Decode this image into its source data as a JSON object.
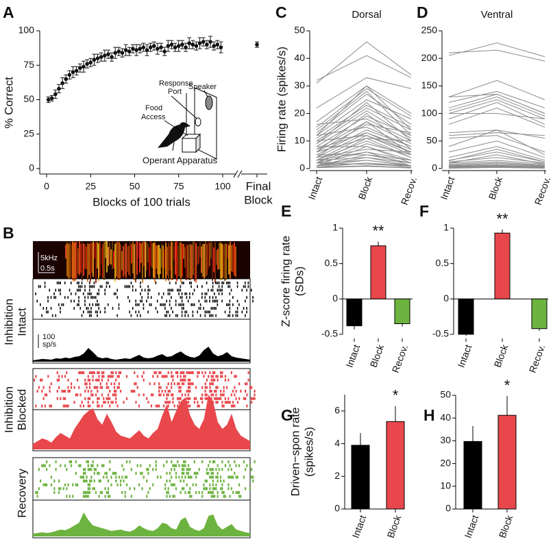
{
  "chart_data": [
    {
      "type": "scatter",
      "panel": "A",
      "ylabel": "% Correct",
      "xlabel": "Blocks of 100 trials",
      "xlim": [
        0,
        100
      ],
      "xticks": [
        0,
        25,
        50,
        75,
        100
      ],
      "ylim": [
        0,
        100
      ],
      "yticks": [
        0,
        25,
        50,
        75,
        100
      ],
      "x": [
        1,
        3,
        5,
        7,
        9,
        11,
        13,
        15,
        17,
        19,
        21,
        23,
        25,
        27,
        29,
        31,
        33,
        35,
        37,
        39,
        41,
        43,
        45,
        47,
        49,
        51,
        53,
        55,
        57,
        59,
        61,
        63,
        65,
        67,
        69,
        71,
        73,
        75,
        77,
        79,
        81,
        83,
        85,
        87,
        89,
        91,
        93,
        95,
        97,
        99
      ],
      "values": [
        50,
        51,
        54,
        58,
        62,
        65,
        68,
        70,
        71,
        73,
        74,
        76,
        77,
        79,
        80,
        81,
        82,
        83,
        81,
        84,
        85,
        84,
        86,
        85,
        87,
        86,
        87,
        88,
        86,
        88,
        89,
        87,
        88,
        85,
        89,
        90,
        88,
        89,
        90,
        88,
        91,
        90,
        89,
        91,
        92,
        90,
        92,
        89,
        90,
        88
      ],
      "errors": [
        2,
        2,
        3,
        3,
        4,
        3,
        3,
        4,
        3,
        3,
        4,
        3,
        3,
        4,
        3,
        3,
        4,
        3,
        3,
        4,
        3,
        3,
        4,
        3,
        3,
        4,
        3,
        3,
        4,
        3,
        3,
        4,
        3,
        3,
        4,
        3,
        3,
        4,
        3,
        3,
        4,
        3,
        3,
        4,
        3,
        3,
        4,
        3,
        3,
        4
      ],
      "final_label": [
        "Final",
        "Block"
      ],
      "final_value": 90,
      "final_error": 2,
      "color": "#111111",
      "inset_labels": {
        "response_port": [
          "Response",
          "Port"
        ],
        "speaker": "Speaker",
        "food_access": [
          "Food",
          "Access"
        ],
        "apparatus": "Operant Apparatus"
      }
    },
    {
      "type": "raster",
      "panel": "B",
      "spectrogram_labels": [
        "5kHz",
        "0.5s"
      ],
      "scale_bar": {
        "value": 100,
        "label": [
          "100",
          "sp/s"
        ]
      },
      "series": [
        {
          "name": [
            "Inhibition",
            "Intact"
          ],
          "color": "#000000",
          "values": [
            10,
            15,
            20,
            18,
            15,
            25,
            22,
            30,
            25,
            35,
            40,
            60,
            100,
            70,
            35,
            25,
            30,
            20,
            15,
            20,
            25,
            20,
            35,
            50,
            30,
            25,
            30,
            45,
            55,
            35,
            40,
            60,
            75,
            50,
            35,
            30,
            45,
            85,
            110,
            60,
            40,
            50,
            70,
            40,
            30,
            25,
            20,
            15
          ]
        },
        {
          "name": [
            "Inhibition",
            "Blocked"
          ],
          "color": "#e8474c",
          "values": [
            40,
            60,
            80,
            70,
            50,
            90,
            120,
            100,
            80,
            150,
            200,
            250,
            280,
            300,
            220,
            180,
            260,
            200,
            130,
            100,
            90,
            80,
            110,
            140,
            100,
            80,
            120,
            150,
            250,
            330,
            200,
            280,
            350,
            380,
            250,
            180,
            150,
            220,
            400,
            350,
            200,
            150,
            180,
            260,
            150,
            100,
            80,
            60
          ]
        },
        {
          "name": [
            "Recovery"
          ],
          "color": "#6db33f",
          "values": [
            20,
            25,
            30,
            25,
            30,
            40,
            50,
            45,
            60,
            80,
            100,
            175,
            120,
            80,
            70,
            60,
            50,
            40,
            45,
            50,
            40,
            35,
            50,
            80,
            60,
            45,
            40,
            60,
            100,
            90,
            60,
            50,
            120,
            140,
            70,
            50,
            40,
            60,
            150,
            160,
            80,
            50,
            70,
            90,
            50,
            40,
            30,
            25
          ]
        }
      ]
    },
    {
      "type": "line",
      "panel": "C",
      "title": "Dorsal",
      "ylabel": "Firing rate (spikes/s)",
      "categories": [
        "Intact",
        "Block",
        "Recov."
      ],
      "ylim": [
        0,
        50
      ],
      "yticks": [
        0,
        10,
        20,
        30,
        40,
        50
      ],
      "color": "#8a8a8a",
      "lines": [
        [
          31,
          46,
          34
        ],
        [
          32,
          41,
          33
        ],
        [
          22,
          33,
          29
        ],
        [
          17,
          30,
          20
        ],
        [
          15,
          29,
          19
        ],
        [
          14,
          28,
          12
        ],
        [
          13,
          27,
          16
        ],
        [
          12,
          25,
          18
        ],
        [
          11,
          23,
          15
        ],
        [
          10,
          22,
          14
        ],
        [
          9,
          21,
          11
        ],
        [
          8,
          19,
          12
        ],
        [
          16,
          18,
          10
        ],
        [
          7,
          17,
          9
        ],
        [
          6,
          16,
          13
        ],
        [
          12,
          15,
          8
        ],
        [
          5,
          14,
          8
        ],
        [
          4,
          13,
          7
        ],
        [
          10,
          12,
          6
        ],
        [
          3,
          12,
          5
        ],
        [
          6,
          11,
          10
        ],
        [
          3,
          10,
          4
        ],
        [
          2,
          9,
          5
        ],
        [
          8,
          8,
          3
        ],
        [
          1,
          8,
          2
        ],
        [
          4,
          7,
          6
        ],
        [
          2,
          6,
          1
        ],
        [
          1,
          5,
          3
        ],
        [
          5,
          5,
          2
        ],
        [
          3,
          4,
          2
        ],
        [
          1,
          3,
          1
        ],
        [
          2,
          3,
          1
        ],
        [
          0.5,
          2,
          1
        ],
        [
          1,
          2,
          0.5
        ],
        [
          0.5,
          1,
          0.3
        ],
        [
          2,
          1.5,
          1
        ],
        [
          0.3,
          0.8,
          0.2
        ],
        [
          1,
          4,
          1
        ],
        [
          3,
          6,
          3
        ],
        [
          2,
          11,
          4
        ],
        [
          6,
          20,
          7
        ],
        [
          9,
          24,
          10
        ],
        [
          4,
          17,
          5
        ],
        [
          12,
          30,
          14
        ],
        [
          7,
          13,
          6
        ]
      ]
    },
    {
      "type": "line",
      "panel": "D",
      "title": "Ventral",
      "categories": [
        "Intact",
        "Block",
        "Recov."
      ],
      "ylim": [
        0,
        250
      ],
      "yticks": [
        0,
        50,
        100,
        150,
        200,
        250
      ],
      "color": "#8a8a8a",
      "lines": [
        [
          205,
          228,
          203
        ],
        [
          210,
          215,
          195
        ],
        [
          130,
          160,
          125
        ],
        [
          120,
          140,
          110
        ],
        [
          110,
          135,
          100
        ],
        [
          105,
          130,
          95
        ],
        [
          100,
          125,
          90
        ],
        [
          90,
          120,
          80
        ],
        [
          80,
          110,
          75
        ],
        [
          130,
          135,
          100
        ],
        [
          65,
          70,
          55
        ],
        [
          60,
          65,
          60
        ],
        [
          55,
          60,
          30
        ],
        [
          40,
          70,
          25
        ],
        [
          30,
          50,
          20
        ],
        [
          20,
          40,
          15
        ],
        [
          15,
          30,
          12
        ],
        [
          12,
          20,
          10
        ],
        [
          10,
          15,
          8
        ],
        [
          8,
          12,
          6
        ],
        [
          6,
          10,
          5
        ],
        [
          5,
          8,
          4
        ],
        [
          4,
          6,
          3
        ],
        [
          3,
          5,
          2
        ],
        [
          2,
          4,
          1
        ],
        [
          1,
          3,
          1
        ],
        [
          0.5,
          2,
          0.5
        ],
        [
          10,
          25,
          8
        ],
        [
          14,
          35,
          12
        ],
        [
          100,
          100,
          90
        ]
      ]
    },
    {
      "type": "bar",
      "panel": "E",
      "ylabel": [
        "Z-score firing rate",
        "(SDs)"
      ],
      "categories": [
        "Intact",
        "Block",
        "Recov."
      ],
      "values": [
        -0.38,
        0.75,
        -0.35
      ],
      "errors": [
        0.05,
        0.06,
        0.04
      ],
      "colors": [
        "#000000",
        "#e8474c",
        "#6db33f"
      ],
      "ylim": [
        -0.5,
        1
      ],
      "yticks": [
        -0.5,
        0,
        0.5,
        1
      ],
      "annotations": [
        {
          "text": "**",
          "category": "Block"
        }
      ]
    },
    {
      "type": "bar",
      "panel": "F",
      "categories": [
        "Intact",
        "Block",
        "Recov."
      ],
      "values": [
        -0.5,
        0.93,
        -0.42
      ],
      "errors": [
        0.02,
        0.05,
        0.03
      ],
      "colors": [
        "#000000",
        "#e8474c",
        "#6db33f"
      ],
      "ylim": [
        -0.5,
        1
      ],
      "yticks": [
        -0.5,
        0,
        0.5,
        1
      ],
      "annotations": [
        {
          "text": "**",
          "category": "Block"
        }
      ]
    },
    {
      "type": "bar",
      "panel": "G",
      "ylabel": [
        "Driven−spon rate",
        "(spikes/s)"
      ],
      "categories": [
        "Intact",
        "Block"
      ],
      "values": [
        3.9,
        5.35
      ],
      "errors": [
        0.75,
        0.95
      ],
      "colors": [
        "#000000",
        "#e8474c"
      ],
      "ylim": [
        0,
        7
      ],
      "yticks": [
        0,
        2,
        4,
        6
      ],
      "annotations": [
        {
          "text": "*",
          "category": "Block"
        }
      ]
    },
    {
      "type": "bar",
      "panel": "H",
      "categories": [
        "Intact",
        "Block"
      ],
      "values": [
        29.7,
        41.2
      ],
      "errors": [
        6.8,
        8.5
      ],
      "colors": [
        "#000000",
        "#e8474c"
      ],
      "ylim": [
        0,
        50
      ],
      "yticks": [
        0,
        10,
        20,
        30,
        40,
        50
      ],
      "annotations": [
        {
          "text": "*",
          "category": "Block"
        }
      ]
    }
  ]
}
